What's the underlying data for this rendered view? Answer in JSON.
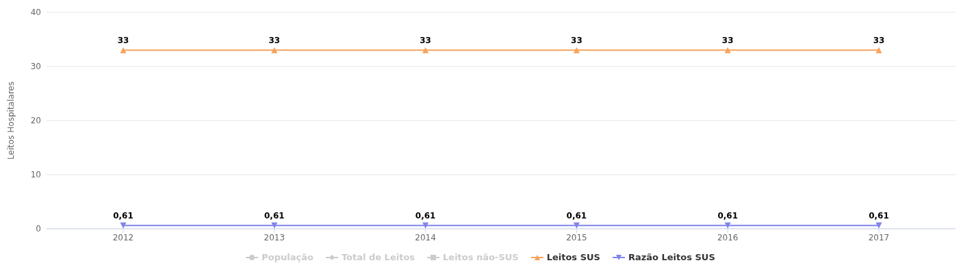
{
  "chart_data": {
    "type": "line",
    "ylabel": "Leitos Hospitalares",
    "categories": [
      "2012",
      "2013",
      "2014",
      "2015",
      "2016",
      "2017"
    ],
    "series": [
      {
        "name": "População",
        "color": "#cccccc",
        "marker": "circle",
        "values": [
          null,
          null,
          null,
          null,
          null,
          null
        ]
      },
      {
        "name": "Total de Leitos",
        "color": "#cccccc",
        "marker": "diamond",
        "values": [
          null,
          null,
          null,
          null,
          null,
          null
        ]
      },
      {
        "name": "Leitos não-SUS",
        "color": "#cccccc",
        "marker": "square",
        "values": [
          null,
          null,
          null,
          null,
          null,
          null
        ]
      },
      {
        "name": "Leitos SUS",
        "color": "#f7a35c",
        "marker": "triangle",
        "values": [
          33,
          33,
          33,
          33,
          33,
          33
        ],
        "value_labels": [
          "33",
          "33",
          "33",
          "33",
          "33",
          "33"
        ]
      },
      {
        "name": "Razão Leitos SUS",
        "color": "#8085e9",
        "marker": "triangle-down",
        "values": [
          0.61,
          0.61,
          0.61,
          0.61,
          0.61,
          0.61
        ],
        "value_labels": [
          "0,61",
          "0,61",
          "0,61",
          "0,61",
          "0,61",
          "0,61"
        ]
      }
    ],
    "ylim": [
      0,
      40
    ],
    "yticks": [
      0,
      10,
      20,
      30,
      40
    ],
    "grid": "y",
    "legend": "bottom"
  }
}
